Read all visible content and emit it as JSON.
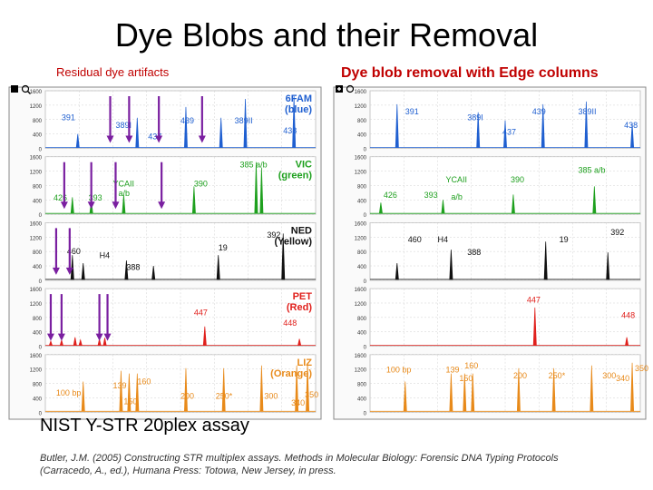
{
  "title": "Dye Blobs and their Removal",
  "left_heading": "Residual dye artifacts",
  "right_heading": "Dye blob removal with Edge columns",
  "bottom_heading": "NIST Y-STR 20plex assay",
  "citation_line1": "Butler, J.M. (2005) Constructing STR multiplex assays. Methods in Molecular Biology: Forensic DNA Typing Protocols",
  "citation_line2": "(Carracedo, A., ed.), Humana Press: Totowa, New Jersey, in press.",
  "colors": {
    "blue": "#1f5fd0",
    "green": "#1ea01e",
    "yellow": "#111111",
    "red": "#e0201c",
    "orange": "#e88a1a",
    "arrow": "#7a1fa0",
    "grid": "#d0d0d0",
    "frame": "#888888"
  },
  "icons": [
    "zoom-icon",
    "plus-icon"
  ],
  "axis_ticks": [
    "1600",
    "1200",
    "800",
    "400",
    "0"
  ],
  "chart_data": [
    {
      "type": "line",
      "name": "Residual dye artifacts",
      "panels": [
        {
          "dye": "blue",
          "label": "6FAM\n(blue)",
          "peaks": [
            {
              "x": 0.12,
              "h": 0.25
            },
            {
              "x": 0.34,
              "h": 0.55
            },
            {
              "x": 0.52,
              "h": 0.75
            },
            {
              "x": 0.65,
              "h": 0.55
            },
            {
              "x": 0.74,
              "h": 0.9
            },
            {
              "x": 0.92,
              "h": 0.95
            }
          ],
          "peak_labels": [
            {
              "text": "391",
              "x": 0.06,
              "y": 0.55
            },
            {
              "text": "389I",
              "x": 0.26,
              "y": 0.42
            },
            {
              "text": "437",
              "x": 0.38,
              "y": 0.22
            },
            {
              "text": "439",
              "x": 0.5,
              "y": 0.5
            },
            {
              "text": "389II",
              "x": 0.7,
              "y": 0.5
            },
            {
              "text": "438",
              "x": 0.88,
              "y": 0.32
            }
          ],
          "arrows": [
            0.24,
            0.31,
            0.42,
            0.58
          ]
        },
        {
          "dye": "green",
          "label": "VIC\n(green)",
          "peaks": [
            {
              "x": 0.1,
              "h": 0.3
            },
            {
              "x": 0.17,
              "h": 0.25
            },
            {
              "x": 0.29,
              "h": 0.35
            },
            {
              "x": 0.55,
              "h": 0.5
            },
            {
              "x": 0.78,
              "h": 0.95
            },
            {
              "x": 0.8,
              "h": 0.85
            }
          ],
          "peak_labels": [
            {
              "text": "426",
              "x": 0.03,
              "y": 0.3
            },
            {
              "text": "393",
              "x": 0.16,
              "y": 0.3
            },
            {
              "text": "YCAII",
              "x": 0.25,
              "y": 0.55
            },
            {
              "text": "a/b",
              "x": 0.27,
              "y": 0.38
            },
            {
              "text": "390",
              "x": 0.55,
              "y": 0.55
            },
            {
              "text": "385 a/b",
              "x": 0.72,
              "y": 0.88
            }
          ],
          "arrows": [
            0.07,
            0.17,
            0.26,
            0.43
          ]
        },
        {
          "dye": "yellow",
          "label": "NED\n(Yellow)",
          "peaks": [
            {
              "x": 0.1,
              "h": 0.45
            },
            {
              "x": 0.14,
              "h": 0.3
            },
            {
              "x": 0.3,
              "h": 0.35
            },
            {
              "x": 0.4,
              "h": 0.25
            },
            {
              "x": 0.64,
              "h": 0.45
            },
            {
              "x": 0.88,
              "h": 0.85
            }
          ],
          "peak_labels": [
            {
              "text": "460",
              "x": 0.08,
              "y": 0.52
            },
            {
              "text": "H4",
              "x": 0.2,
              "y": 0.45
            },
            {
              "text": "388",
              "x": 0.3,
              "y": 0.24
            },
            {
              "text": "19",
              "x": 0.64,
              "y": 0.58
            },
            {
              "text": "392",
              "x": 0.82,
              "y": 0.8
            }
          ],
          "arrows": [
            0.04,
            0.09
          ]
        },
        {
          "dye": "red",
          "label": "PET\n(Red)",
          "peaks": [
            {
              "x": 0.02,
              "h": 0.08
            },
            {
              "x": 0.06,
              "h": 0.1
            },
            {
              "x": 0.11,
              "h": 0.15
            },
            {
              "x": 0.13,
              "h": 0.1
            },
            {
              "x": 0.2,
              "h": 0.12
            },
            {
              "x": 0.22,
              "h": 0.14
            },
            {
              "x": 0.59,
              "h": 0.35
            },
            {
              "x": 0.94,
              "h": 0.12
            }
          ],
          "peak_labels": [
            {
              "text": "447",
              "x": 0.55,
              "y": 0.6
            },
            {
              "text": "448",
              "x": 0.88,
              "y": 0.42
            }
          ],
          "arrows": [
            0.02,
            0.06,
            0.2,
            0.23
          ]
        },
        {
          "dye": "orange",
          "label": "LIZ\n(Orange)",
          "peaks": [
            {
              "x": 0.14,
              "h": 0.55
            },
            {
              "x": 0.28,
              "h": 0.75
            },
            {
              "x": 0.31,
              "h": 0.7
            },
            {
              "x": 0.34,
              "h": 0.7
            },
            {
              "x": 0.52,
              "h": 0.8
            },
            {
              "x": 0.66,
              "h": 0.8
            },
            {
              "x": 0.8,
              "h": 0.85
            },
            {
              "x": 0.93,
              "h": 0.85
            },
            {
              "x": 0.97,
              "h": 0.9
            }
          ],
          "peak_labels": [
            {
              "text": "100 bp",
              "x": 0.04,
              "y": 0.35
            },
            {
              "text": "139",
              "x": 0.25,
              "y": 0.48
            },
            {
              "text": "160",
              "x": 0.34,
              "y": 0.55
            },
            {
              "text": "150",
              "x": 0.29,
              "y": 0.2
            },
            {
              "text": "200",
              "x": 0.5,
              "y": 0.3
            },
            {
              "text": "250*",
              "x": 0.63,
              "y": 0.3
            },
            {
              "text": "300",
              "x": 0.81,
              "y": 0.3
            },
            {
              "text": "340",
              "x": 0.91,
              "y": 0.18
            },
            {
              "text": "350",
              "x": 0.96,
              "y": 0.32
            }
          ],
          "arrows": []
        }
      ]
    },
    {
      "type": "line",
      "name": "Dye blob removal with Edge columns",
      "panels": [
        {
          "dye": "blue",
          "label": "",
          "peaks": [
            {
              "x": 0.1,
              "h": 0.8
            },
            {
              "x": 0.4,
              "h": 0.65
            },
            {
              "x": 0.5,
              "h": 0.5
            },
            {
              "x": 0.64,
              "h": 0.8
            },
            {
              "x": 0.8,
              "h": 0.85
            },
            {
              "x": 0.97,
              "h": 0.45
            }
          ],
          "peak_labels": [
            {
              "text": "391",
              "x": 0.13,
              "y": 0.65
            },
            {
              "text": "389I",
              "x": 0.36,
              "y": 0.55
            },
            {
              "text": "437",
              "x": 0.49,
              "y": 0.3
            },
            {
              "text": "439",
              "x": 0.6,
              "y": 0.65
            },
            {
              "text": "389II",
              "x": 0.77,
              "y": 0.65
            },
            {
              "text": "438",
              "x": 0.94,
              "y": 0.42
            }
          ]
        },
        {
          "dye": "green",
          "label": "",
          "peaks": [
            {
              "x": 0.04,
              "h": 0.2
            },
            {
              "x": 0.27,
              "h": 0.25
            },
            {
              "x": 0.53,
              "h": 0.35
            },
            {
              "x": 0.83,
              "h": 0.5
            }
          ],
          "peak_labels": [
            {
              "text": "426",
              "x": 0.05,
              "y": 0.35
            },
            {
              "text": "393",
              "x": 0.2,
              "y": 0.35
            },
            {
              "text": "YCAII",
              "x": 0.28,
              "y": 0.62
            },
            {
              "text": "a/b",
              "x": 0.3,
              "y": 0.32
            },
            {
              "text": "390",
              "x": 0.52,
              "y": 0.62
            },
            {
              "text": "385 a/b",
              "x": 0.77,
              "y": 0.78
            }
          ]
        },
        {
          "dye": "yellow",
          "label": "",
          "peaks": [
            {
              "x": 0.1,
              "h": 0.3
            },
            {
              "x": 0.3,
              "h": 0.55
            },
            {
              "x": 0.65,
              "h": 0.7
            },
            {
              "x": 0.88,
              "h": 0.5
            }
          ],
          "peak_labels": [
            {
              "text": "460",
              "x": 0.14,
              "y": 0.72
            },
            {
              "text": "H4",
              "x": 0.25,
              "y": 0.72
            },
            {
              "text": "388",
              "x": 0.36,
              "y": 0.5
            },
            {
              "text": "19",
              "x": 0.7,
              "y": 0.72
            },
            {
              "text": "392",
              "x": 0.89,
              "y": 0.85
            }
          ]
        },
        {
          "dye": "red",
          "label": "",
          "peaks": [
            {
              "x": 0.61,
              "h": 0.7
            },
            {
              "x": 0.95,
              "h": 0.15
            }
          ],
          "peak_labels": [
            {
              "text": "447",
              "x": 0.58,
              "y": 0.82
            },
            {
              "text": "448",
              "x": 0.93,
              "y": 0.55
            }
          ]
        },
        {
          "dye": "orange",
          "label": "",
          "peaks": [
            {
              "x": 0.13,
              "h": 0.55
            },
            {
              "x": 0.3,
              "h": 0.7
            },
            {
              "x": 0.35,
              "h": 0.7
            },
            {
              "x": 0.38,
              "h": 0.7
            },
            {
              "x": 0.55,
              "h": 0.8
            },
            {
              "x": 0.68,
              "h": 0.8
            },
            {
              "x": 0.82,
              "h": 0.85
            },
            {
              "x": 0.97,
              "h": 0.9
            }
          ],
          "peak_labels": [
            {
              "text": "100 bp",
              "x": 0.06,
              "y": 0.75
            },
            {
              "text": "139",
              "x": 0.28,
              "y": 0.75
            },
            {
              "text": "160",
              "x": 0.35,
              "y": 0.82
            },
            {
              "text": "150",
              "x": 0.33,
              "y": 0.6
            },
            {
              "text": "200",
              "x": 0.53,
              "y": 0.65
            },
            {
              "text": "250*",
              "x": 0.66,
              "y": 0.65
            },
            {
              "text": "300",
              "x": 0.86,
              "y": 0.65
            },
            {
              "text": "340",
              "x": 0.91,
              "y": 0.6
            },
            {
              "text": "350",
              "x": 0.98,
              "y": 0.78
            }
          ]
        }
      ]
    }
  ]
}
